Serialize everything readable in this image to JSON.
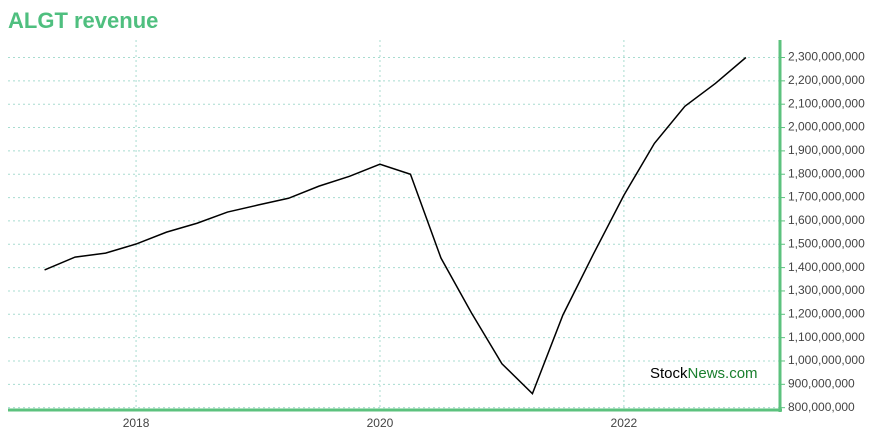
{
  "chart_data": {
    "type": "line",
    "title": "ALGT revenue",
    "x": [
      2017.25,
      2017.5,
      2017.75,
      2018,
      2018.25,
      2018.5,
      2018.75,
      2019,
      2019.25,
      2019.5,
      2019.75,
      2020,
      2020.25,
      2020.5,
      2020.75,
      2021,
      2021.25,
      2021.5,
      2021.75,
      2022,
      2022.25,
      2022.5,
      2022.75,
      2023
    ],
    "series": [
      {
        "name": "revenue",
        "color": "#000000",
        "values": [
          1390000000,
          1445000000,
          1462000000,
          1501000000,
          1552000000,
          1590000000,
          1638000000,
          1668000000,
          1697000000,
          1749000000,
          1791000000,
          1843000000,
          1800000000,
          1441000000,
          1206000000,
          988000000,
          860000000,
          1197000000,
          1458000000,
          1710000000,
          1932000000,
          2091000000,
          2189000000,
          2300000000
        ]
      }
    ],
    "xlim": [
      2016.95,
      2023.28
    ],
    "xticks": [
      2018,
      2020,
      2022
    ],
    "ylim": [
      790000000,
      2375000000
    ],
    "yticks": [
      {
        "value": 800000000,
        "label": "800,000,000"
      },
      {
        "value": 900000000,
        "label": "900,000,000"
      },
      {
        "value": 1000000000,
        "label": "1,000,000,000"
      },
      {
        "value": 1100000000,
        "label": "1,100,000,000"
      },
      {
        "value": 1200000000,
        "label": "1,200,000,000"
      },
      {
        "value": 1300000000,
        "label": "1,300,000,000"
      },
      {
        "value": 1400000000,
        "label": "1,400,000,000"
      },
      {
        "value": 1500000000,
        "label": "1,500,000,000"
      },
      {
        "value": 1600000000,
        "label": "1,600,000,000"
      },
      {
        "value": 1700000000,
        "label": "1,700,000,000"
      },
      {
        "value": 1800000000,
        "label": "1,800,000,000"
      },
      {
        "value": 1900000000,
        "label": "1,900,000,000"
      },
      {
        "value": 2000000000,
        "label": "2,000,000,000"
      },
      {
        "value": 2100000000,
        "label": "2,100,000,000"
      },
      {
        "value": 2200000000,
        "label": "2,200,000,000"
      },
      {
        "value": 2300000000,
        "label": "2,300,000,000"
      }
    ],
    "grid": true,
    "axis_color": "#5cc27e",
    "grid_color": "#a8dcd0",
    "watermark": [
      "Stock",
      "News.com"
    ]
  }
}
